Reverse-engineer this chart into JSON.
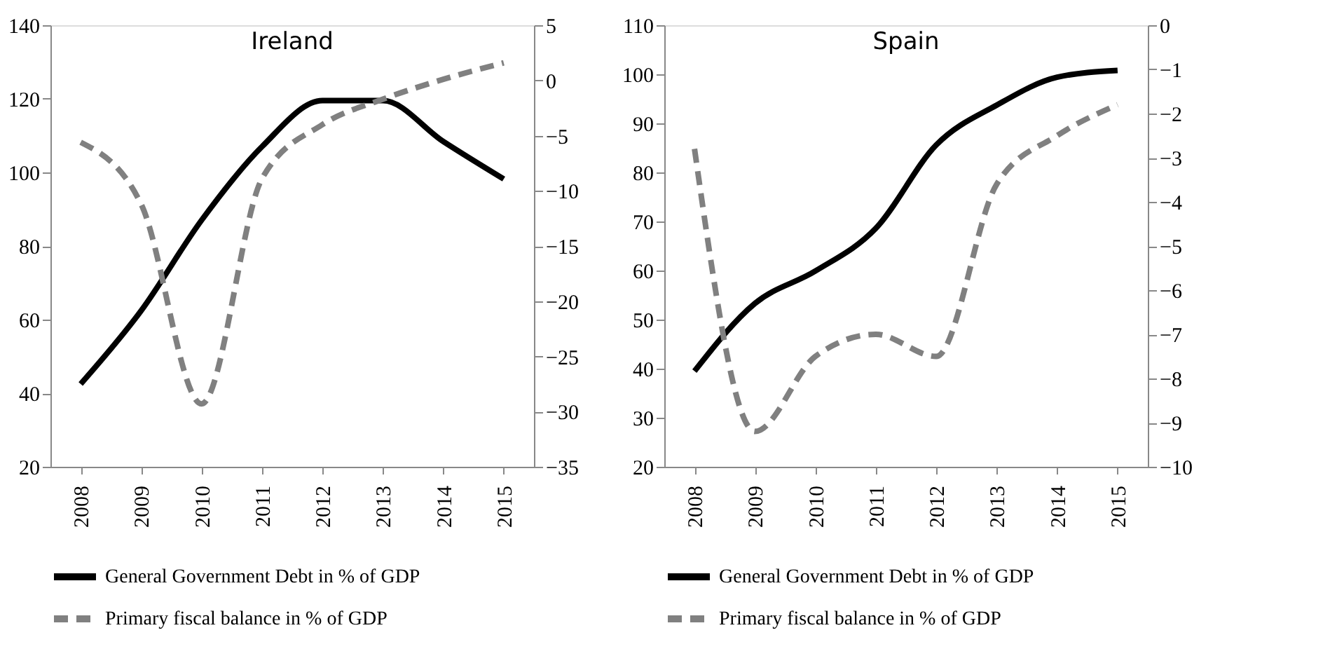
{
  "chart_data": [
    {
      "type": "line",
      "title": "Ireland",
      "categories": [
        "2008",
        "2009",
        "2010",
        "2011",
        "2012",
        "2013",
        "2014",
        "2015"
      ],
      "series": [
        {
          "name": "General Government Debt in % of GDP",
          "color": "#000000",
          "line_style": "solid",
          "values": [
            42.5,
            62.4,
            87,
            107,
            119.5,
            119.5,
            108.4,
            98.2
          ]
        },
        {
          "name": "Primary fiscal balance in % of GDP",
          "color": "#808080",
          "line_style": "dashed",
          "axis": "y2",
          "values": [
            -5.6,
            -11.2,
            -29.3,
            -8.9,
            -4.0,
            -1.7,
            0.1,
            1.6
          ]
        }
      ],
      "ylim": [
        20,
        140
      ],
      "yticks": [
        20,
        40,
        60,
        80,
        100,
        120,
        140
      ],
      "y2lim": [
        -35,
        5
      ],
      "y2ticks": [
        -35,
        -30,
        -25,
        -20,
        -15,
        -10,
        -5,
        0,
        5
      ],
      "grid": false,
      "legend": "bottom"
    },
    {
      "type": "line",
      "title": "Spain",
      "categories": [
        "2008",
        "2009",
        "2010",
        "2011",
        "2012",
        "2013",
        "2014",
        "2015"
      ],
      "series": [
        {
          "name": "General Government Debt in % of GDP",
          "color": "#000000",
          "line_style": "solid",
          "values": [
            39.5,
            53.3,
            59.9,
            68.6,
            85.6,
            93.7,
            99.4,
            100.8
          ]
        },
        {
          "name": "Primary fiscal balance in % of GDP",
          "color": "#808080",
          "line_style": "dashed",
          "axis": "y2",
          "values": [
            -2.8,
            -9.2,
            -7.5,
            -7.0,
            -7.5,
            -3.6,
            -2.5,
            -1.8
          ]
        }
      ],
      "ylim": [
        20,
        110
      ],
      "yticks": [
        20,
        30,
        40,
        50,
        60,
        70,
        80,
        90,
        100,
        110
      ],
      "y2lim": [
        -10,
        0
      ],
      "y2ticks": [
        -10,
        -9,
        -8,
        -7,
        -6,
        -5,
        -4,
        -3,
        -2,
        -1,
        0
      ],
      "grid": false,
      "legend": "bottom"
    }
  ]
}
